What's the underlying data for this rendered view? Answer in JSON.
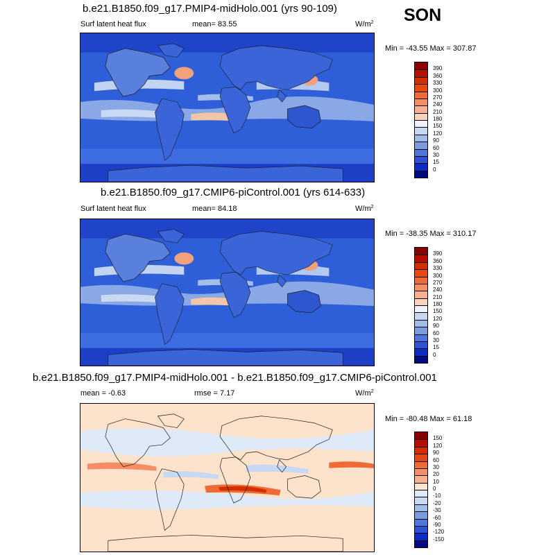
{
  "season": "SON",
  "panels": [
    {
      "title": "b.e21.B1850.f09_g17.PMIP4-midHolo.001 (yrs 90-109)",
      "left_label": "Surf latent heat flux",
      "center_label": "mean=  83.55",
      "units_base": "W/m",
      "units_exp": "2",
      "minmax": "Min = -43.55 Max = 307.87",
      "colorbar": {
        "labels": [
          "390",
          "360",
          "330",
          "300",
          "270",
          "240",
          "210",
          "180",
          "150",
          "120",
          "90",
          "60",
          "30",
          "15",
          "0"
        ],
        "colors": [
          "#8a0000",
          "#b40f00",
          "#d22e00",
          "#e64812",
          "#f06a36",
          "#f58e62",
          "#f8b08e",
          "#f9d2bc",
          "#eef2f8",
          "#c6d8f2",
          "#a0bce9",
          "#7a9cdf",
          "#4f76db",
          "#2c52d6",
          "#0c2cc4",
          "#000a82"
        ]
      },
      "map_type": "latent"
    },
    {
      "title": "b.e21.B1850.f09_g17.CMIP6-piControl.001 (yrs 614-633)",
      "left_label": "Surf latent heat flux",
      "center_label": "mean=  84.18",
      "units_base": "W/m",
      "units_exp": "2",
      "minmax": "Min = -38.35 Max = 310.17",
      "colorbar": {
        "labels": [
          "390",
          "360",
          "330",
          "300",
          "270",
          "240",
          "210",
          "180",
          "150",
          "120",
          "90",
          "60",
          "30",
          "15",
          "0"
        ],
        "colors": [
          "#8a0000",
          "#b40f00",
          "#d22e00",
          "#e64812",
          "#f06a36",
          "#f58e62",
          "#f8b08e",
          "#f9d2bc",
          "#eef2f8",
          "#c6d8f2",
          "#a0bce9",
          "#7a9cdf",
          "#4f76db",
          "#2c52d6",
          "#0c2cc4",
          "#000a82"
        ]
      },
      "map_type": "latent"
    },
    {
      "title": "b.e21.B1850.f09_g17.PMIP4-midHolo.001 - b.e21.B1850.f09_g17.CMIP6-piControl.001",
      "left_label": "mean =  -0.63",
      "center_label": "rmse =  7.17",
      "units_base": "W/m",
      "units_exp": "2",
      "minmax": "Min = -80.48 Max =  61.18",
      "colorbar": {
        "labels": [
          "150",
          "120",
          "90",
          "60",
          "30",
          "20",
          "10",
          "0",
          "-10",
          "-20",
          "-30",
          "-60",
          "-90",
          "-120",
          "-150"
        ],
        "colors": [
          "#8a0000",
          "#b40f00",
          "#d22e00",
          "#e64812",
          "#f06a36",
          "#f58e62",
          "#f8b08e",
          "#fde2cc",
          "#dfeaf9",
          "#c6d8f2",
          "#a0bce9",
          "#7a9cdf",
          "#4f76db",
          "#2c52d6",
          "#0c2cc4",
          "#000a82"
        ]
      },
      "map_type": "diff"
    }
  ]
}
